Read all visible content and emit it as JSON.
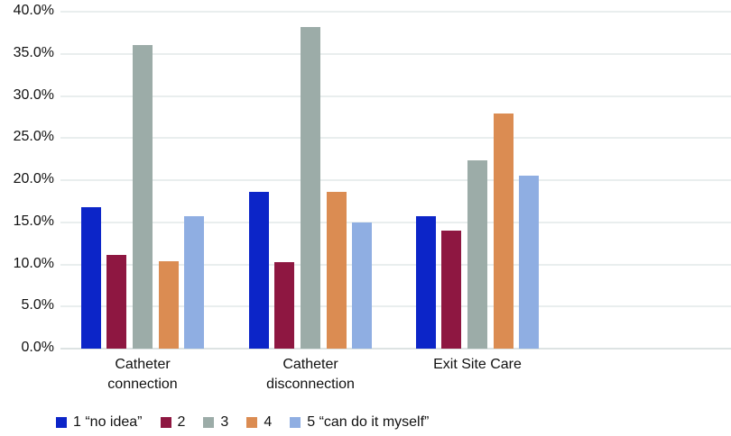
{
  "chart_data": {
    "type": "bar",
    "title": "",
    "xlabel": "",
    "ylabel": "",
    "categories": [
      "Catheter\nconnection",
      "Catheter\ndisconnection",
      "Exit Site Care"
    ],
    "series": [
      {
        "name": "1 “no idea”",
        "color": "#0C25C8",
        "values": [
          16.8,
          18.6,
          15.7
        ]
      },
      {
        "name": "2",
        "color": "#8E1741",
        "values": [
          11.1,
          10.3,
          14.0
        ]
      },
      {
        "name": "3",
        "color": "#9CACA8",
        "values": [
          36.0,
          38.2,
          22.3
        ]
      },
      {
        "name": "4",
        "color": "#DB8C52",
        "values": [
          10.4,
          18.6,
          27.9
        ]
      },
      {
        "name": "5 “can do it myself”",
        "color": "#8FAEE2",
        "values": [
          15.7,
          15.0,
          20.5
        ]
      }
    ],
    "yticks": [
      "0.0%",
      "5.0%",
      "10.0%",
      "15.0%",
      "20.0%",
      "25.0%",
      "30.0%",
      "35.0%",
      "40.0%"
    ],
    "ylim": [
      0,
      40
    ],
    "ytick_step": 5,
    "grid": true,
    "legend_position": "bottom"
  },
  "colors": {
    "background": "#FFFFFF",
    "gridline": "#E9EEEE",
    "axis_line": "#DDE3E3",
    "text": "#111111"
  }
}
